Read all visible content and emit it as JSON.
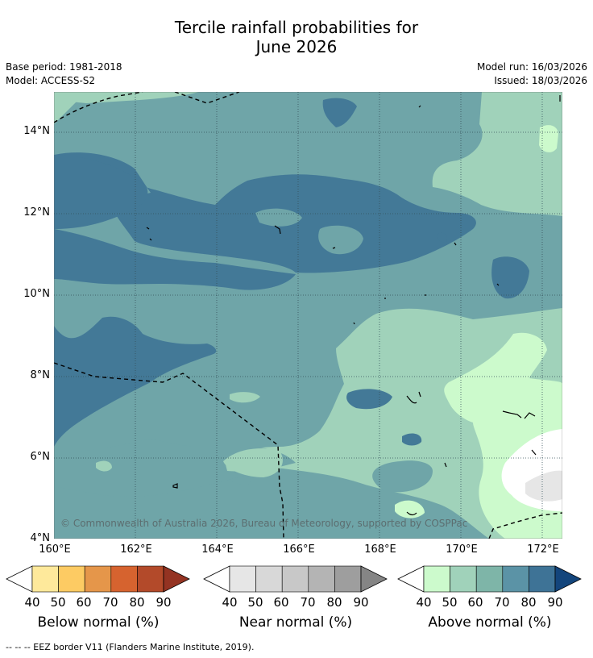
{
  "title_line1": "Tercile rainfall probabilities for",
  "title_line2": "June 2026",
  "base_period": "Base period: 1981-2018",
  "model": "Model: ACCESS-S2",
  "model_run": "Model run: 16/03/2026",
  "issued": "Issued: 18/03/2026",
  "copyright": "© Commonwealth of Australia 2026, Bureau of Meteorology, supported by COSPPac",
  "latitude_labels": [
    "14°N",
    "12°N",
    "10°N",
    "8°N",
    "6°N",
    "4°N"
  ],
  "longitude_labels": [
    "160°E",
    "162°E",
    "164°E",
    "166°E",
    "168°E",
    "170°E",
    "172°E"
  ],
  "legend": {
    "below": {
      "label": "Below normal (%)",
      "ticks": [
        "40",
        "50",
        "60",
        "70",
        "80",
        "90"
      ],
      "colors": [
        "#ffffff",
        "#fee99b",
        "#fdcb63",
        "#e5964a",
        "#d6632f",
        "#b34a2a",
        "#943322"
      ]
    },
    "near": {
      "label": "Near normal (%)",
      "ticks": [
        "40",
        "50",
        "60",
        "70",
        "80",
        "90"
      ],
      "colors": [
        "#ffffff",
        "#e6e6e6",
        "#d8d8d8",
        "#c8c8c8",
        "#b4b4b4",
        "#9e9e9e",
        "#858585"
      ]
    },
    "above": {
      "label": "Above normal (%)",
      "ticks": [
        "40",
        "50",
        "60",
        "70",
        "80",
        "90"
      ],
      "colors": [
        "#ffffff",
        "#ccfacc",
        "#a0d2ba",
        "#7eb5a8",
        "#5b93a6",
        "#3e7396",
        "#13457c"
      ]
    }
  },
  "eez_legend": "--  --  -- EEZ border V11 (Flanders Marine Institute, 2019)."
}
